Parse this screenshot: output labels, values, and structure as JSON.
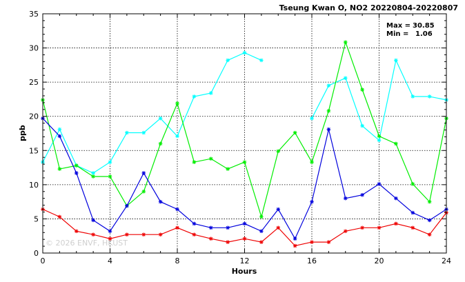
{
  "chart_data": {
    "type": "line",
    "title": "Tseung Kwan O, NO2 20220804-20220807",
    "xlabel": "Hours",
    "ylabel": "ppb",
    "xlim": [
      0,
      24
    ],
    "ylim": [
      0,
      35
    ],
    "xticks": [
      0,
      4,
      8,
      12,
      16,
      20,
      24
    ],
    "yticks": [
      0,
      5,
      10,
      15,
      20,
      25,
      30,
      35
    ],
    "grid": true,
    "x": [
      0,
      1,
      2,
      3,
      4,
      5,
      6,
      7,
      8,
      9,
      10,
      11,
      12,
      13,
      14,
      15,
      16,
      17,
      18,
      19,
      20,
      21,
      22,
      23,
      24
    ],
    "series": [
      {
        "color": "#00ffff",
        "values": [
          13.3,
          18.1,
          12.8,
          11.7,
          13.3,
          17.6,
          17.6,
          19.7,
          17.1,
          22.9,
          23.4,
          28.2,
          29.3,
          28.2,
          null,
          null,
          19.7,
          24.5,
          25.6,
          18.6,
          16.5,
          28.2,
          22.9,
          22.9,
          22.4
        ]
      },
      {
        "color": "#00ee00",
        "values": [
          22.4,
          12.3,
          12.8,
          11.2,
          11.2,
          6.9,
          9.0,
          16.0,
          21.9,
          13.3,
          13.8,
          12.3,
          13.3,
          5.3,
          14.9,
          17.6,
          13.3,
          20.8,
          30.85,
          23.9,
          17.1,
          16.0,
          10.1,
          7.5,
          19.7
        ]
      },
      {
        "color": "#0000dd",
        "values": [
          19.7,
          17.1,
          11.7,
          4.8,
          3.2,
          6.9,
          11.7,
          7.5,
          6.4,
          4.3,
          3.7,
          3.7,
          4.3,
          3.2,
          6.4,
          2.1,
          7.5,
          18.1,
          8.0,
          8.5,
          10.1,
          8.0,
          5.9,
          4.8,
          6.4
        ]
      },
      {
        "color": "#ee0000",
        "values": [
          6.4,
          5.3,
          3.2,
          2.7,
          2.1,
          2.7,
          2.7,
          2.7,
          3.7,
          2.7,
          2.1,
          1.6,
          2.1,
          1.6,
          3.7,
          1.06,
          1.6,
          1.6,
          3.2,
          3.7,
          3.7,
          4.3,
          3.7,
          2.7,
          5.9
        ]
      }
    ],
    "annotations": {
      "max_label": "Max =",
      "max_value": "30.85",
      "min_label": "Min =",
      "min_value": "1.06"
    },
    "watermark": "© 2026  ENVF, HKUST"
  }
}
